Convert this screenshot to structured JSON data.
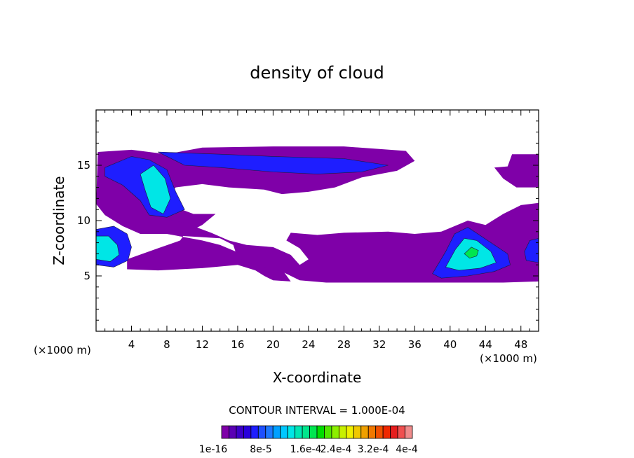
{
  "chart_data": {
    "type": "contour",
    "title": "density of cloud",
    "xlabel": "X-coordinate",
    "ylabel": "Z-coordinate",
    "x_unit_left": "(×1000 m)",
    "x_unit_right": "(×1000 m)",
    "xlim": [
      0,
      50
    ],
    "ylim": [
      0,
      20
    ],
    "xticks": [
      4,
      8,
      12,
      16,
      20,
      24,
      28,
      32,
      36,
      40,
      44,
      48
    ],
    "yticks": [
      5,
      10,
      15
    ],
    "contour_interval_text": "CONTOUR INTERVAL = 1.000E-04",
    "colorbar_labels": [
      "1e-16",
      "8e-5",
      "1.6e-4",
      "2.4e-4",
      "3.2e-4",
      "4e-4"
    ],
    "colorbar_colors": [
      "#7f00a8",
      "#5a00b4",
      "#3c00c8",
      "#2800dc",
      "#1e1eff",
      "#1e50ff",
      "#1e78ff",
      "#00a0ff",
      "#00c8ff",
      "#00e6e6",
      "#00e6b4",
      "#00e68c",
      "#00e650",
      "#00dc00",
      "#50e600",
      "#8cf000",
      "#c8f000",
      "#f0f000",
      "#f0c800",
      "#f0a000",
      "#f07800",
      "#f05000",
      "#f02800",
      "#e61e1e",
      "#f05050",
      "#f08c8c"
    ],
    "regions": [
      {
        "name": "upper-cloud-layer",
        "level_index": 0,
        "poly": [
          [
            0.2,
            16.2
          ],
          [
            4,
            16.4
          ],
          [
            8,
            16.0
          ],
          [
            12,
            16.6
          ],
          [
            20,
            16.7
          ],
          [
            28,
            16.7
          ],
          [
            35,
            16.3
          ],
          [
            36,
            15.4
          ],
          [
            34,
            14.5
          ],
          [
            30,
            13.9
          ],
          [
            27,
            13.0
          ],
          [
            24,
            12.6
          ],
          [
            21,
            12.4
          ],
          [
            19,
            12.8
          ],
          [
            15,
            13.0
          ],
          [
            12,
            13.3
          ],
          [
            9,
            13.0
          ],
          [
            8,
            12.2
          ],
          [
            9,
            11.2
          ],
          [
            11,
            10.6
          ],
          [
            13.5,
            10.6
          ],
          [
            12,
            9.6
          ],
          [
            10,
            8.8
          ],
          [
            9.5,
            8.2
          ],
          [
            7,
            7.5
          ],
          [
            3.5,
            6.5
          ],
          [
            3.5,
            5.6
          ],
          [
            7,
            5.5
          ],
          [
            12,
            5.7
          ],
          [
            16,
            6.0
          ],
          [
            18,
            5.5
          ],
          [
            19,
            5.0
          ],
          [
            20,
            4.6
          ],
          [
            22,
            4.5
          ],
          [
            21,
            5.6
          ],
          [
            17,
            6.8
          ],
          [
            14,
            7.8
          ],
          [
            12,
            8.2
          ],
          [
            8,
            8.8
          ],
          [
            5,
            8.8
          ],
          [
            3,
            9.5
          ],
          [
            1,
            10.5
          ],
          [
            0,
            11.5
          ]
        ]
      },
      {
        "name": "lower-cloud-band",
        "level_index": 0,
        "poly": [
          [
            0,
            11.5
          ],
          [
            3,
            10
          ],
          [
            6,
            9
          ],
          [
            10,
            8.6
          ],
          [
            14,
            8.4
          ],
          [
            15.5,
            7.8
          ],
          [
            16,
            6.6
          ],
          [
            18,
            6.0
          ],
          [
            21,
            5.4
          ],
          [
            23,
            4.6
          ],
          [
            26,
            4.4
          ],
          [
            34,
            4.4
          ],
          [
            40,
            4.4
          ],
          [
            46,
            4.4
          ],
          [
            50,
            4.5
          ],
          [
            50,
            11.6
          ],
          [
            48,
            11.4
          ],
          [
            46,
            10.6
          ],
          [
            44,
            9.6
          ],
          [
            42,
            10.0
          ],
          [
            39,
            9.0
          ],
          [
            36,
            8.8
          ],
          [
            33,
            9.0
          ],
          [
            28,
            8.9
          ],
          [
            25,
            8.7
          ],
          [
            22,
            8.9
          ],
          [
            21.5,
            8.2
          ],
          [
            23,
            7.5
          ],
          [
            24,
            6.5
          ],
          [
            23,
            6.0
          ],
          [
            22,
            6.9
          ],
          [
            20,
            7.6
          ],
          [
            17,
            7.8
          ],
          [
            15,
            8.2
          ],
          [
            13,
            8.9
          ],
          [
            10,
            9.8
          ],
          [
            6,
            10.4
          ],
          [
            3,
            11.5
          ],
          [
            0,
            12
          ]
        ]
      },
      {
        "name": "right-top-patches",
        "level_index": 0,
        "poly": [
          [
            47,
            16.0
          ],
          [
            50,
            16.0
          ],
          [
            50,
            13.0
          ],
          [
            47.5,
            13.0
          ],
          [
            46,
            13.8
          ],
          [
            45,
            14.8
          ],
          [
            46.5,
            14.9
          ]
        ]
      },
      {
        "name": "upper-blue-core",
        "level_index": 4,
        "poly": [
          [
            7,
            16.2
          ],
          [
            14,
            16.0
          ],
          [
            20,
            15.8
          ],
          [
            28,
            15.6
          ],
          [
            33,
            15.0
          ],
          [
            30,
            14.4
          ],
          [
            25,
            14.2
          ],
          [
            20,
            14.4
          ],
          [
            14,
            14.8
          ],
          [
            10,
            15.0
          ]
        ]
      },
      {
        "name": "left-column-blue",
        "level_index": 4,
        "poly": [
          [
            1,
            14.8
          ],
          [
            4,
            15.8
          ],
          [
            6,
            15.5
          ],
          [
            8,
            14.6
          ],
          [
            9,
            12.6
          ],
          [
            10,
            11.0
          ],
          [
            8,
            10.3
          ],
          [
            6,
            10.5
          ],
          [
            5,
            11.8
          ],
          [
            3,
            13.2
          ],
          [
            1,
            14.0
          ]
        ]
      },
      {
        "name": "left-column-cyan",
        "level_index": 9,
        "poly": [
          [
            5,
            14.2
          ],
          [
            6.5,
            15.0
          ],
          [
            7.8,
            13.8
          ],
          [
            8.4,
            12.0
          ],
          [
            7.6,
            10.6
          ],
          [
            6.2,
            11.2
          ],
          [
            5.6,
            12.6
          ]
        ]
      },
      {
        "name": "left-edge-blue",
        "level_index": 4,
        "poly": [
          [
            0,
            9.2
          ],
          [
            2,
            9.5
          ],
          [
            3.5,
            8.8
          ],
          [
            4,
            7.6
          ],
          [
            3.6,
            6.4
          ],
          [
            2.0,
            5.8
          ],
          [
            0,
            6.0
          ]
        ]
      },
      {
        "name": "left-edge-cyan",
        "level_index": 9,
        "poly": [
          [
            0,
            8.6
          ],
          [
            1.4,
            8.6
          ],
          [
            2.4,
            7.8
          ],
          [
            2.6,
            6.9
          ],
          [
            1.6,
            6.3
          ],
          [
            0,
            6.5
          ]
        ]
      },
      {
        "name": "right-blob-blue",
        "level_index": 4,
        "poly": [
          [
            38,
            5.2
          ],
          [
            39.5,
            7.2
          ],
          [
            40.5,
            8.8
          ],
          [
            42,
            9.4
          ],
          [
            43.5,
            8.6
          ],
          [
            45,
            7.8
          ],
          [
            46.5,
            7.0
          ],
          [
            46.8,
            6.0
          ],
          [
            45,
            5.4
          ],
          [
            42,
            5.0
          ],
          [
            39,
            4.8
          ]
        ]
      },
      {
        "name": "right-blob-cyan",
        "level_index": 9,
        "poly": [
          [
            39.5,
            5.8
          ],
          [
            40.6,
            7.4
          ],
          [
            41.6,
            8.4
          ],
          [
            43.0,
            8.2
          ],
          [
            44.6,
            7.2
          ],
          [
            45.2,
            6.2
          ],
          [
            43.4,
            5.7
          ],
          [
            41,
            5.5
          ]
        ]
      },
      {
        "name": "right-blob-green",
        "level_index": 12,
        "poly": [
          [
            41.6,
            7.0
          ],
          [
            42.4,
            7.6
          ],
          [
            43.2,
            7.3
          ],
          [
            43.0,
            6.8
          ],
          [
            42.2,
            6.6
          ]
        ]
      },
      {
        "name": "right-edge-blue",
        "level_index": 4,
        "poly": [
          [
            48.6,
            6.4
          ],
          [
            50,
            6.2
          ],
          [
            50,
            8.4
          ],
          [
            49.0,
            8.2
          ],
          [
            48.4,
            7.2
          ]
        ]
      }
    ]
  }
}
